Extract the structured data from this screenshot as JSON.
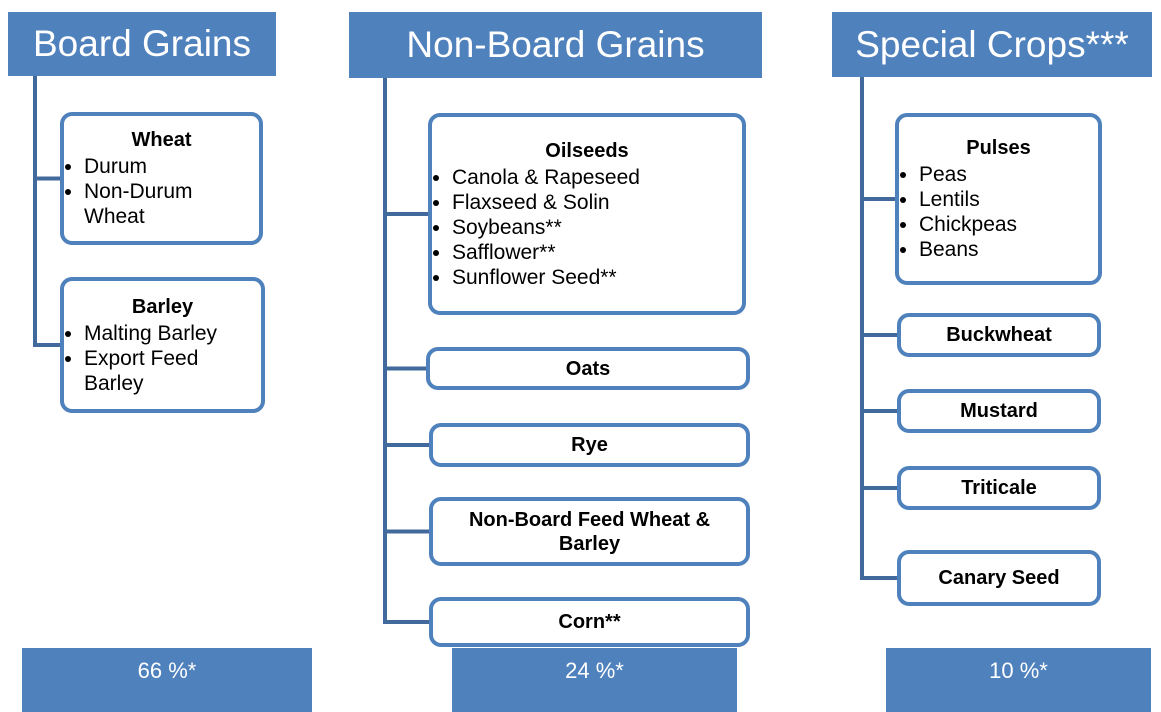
{
  "columns": [
    {
      "title": "Board Grains",
      "share": "66 %*",
      "groups": [
        {
          "title": "Wheat",
          "items": [
            "Durum",
            "Non-Durum Wheat"
          ]
        },
        {
          "title": "Barley",
          "items": [
            "Malting Barley",
            "Export Feed Barley"
          ]
        }
      ]
    },
    {
      "title": "Non-Board Grains",
      "share": "24 %*",
      "groups": [
        {
          "title": "Oilseeds",
          "items": [
            "Canola & Rapeseed",
            "Flaxseed & Solin",
            "Soybeans**",
            "Safflower**",
            "Sunflower Seed**"
          ]
        },
        {
          "title": "Oats"
        },
        {
          "title": "Rye"
        },
        {
          "title": "Non-Board Feed Wheat & Barley"
        },
        {
          "title": "Corn**"
        }
      ]
    },
    {
      "title": "Special Crops***",
      "share": "10 %*",
      "groups": [
        {
          "title": "Pulses",
          "items": [
            "Peas",
            "Lentils",
            "Chickpeas",
            "Beans"
          ]
        },
        {
          "title": "Buckwheat"
        },
        {
          "title": "Mustard"
        },
        {
          "title": "Triticale"
        },
        {
          "title": "Canary Seed"
        }
      ]
    }
  ]
}
